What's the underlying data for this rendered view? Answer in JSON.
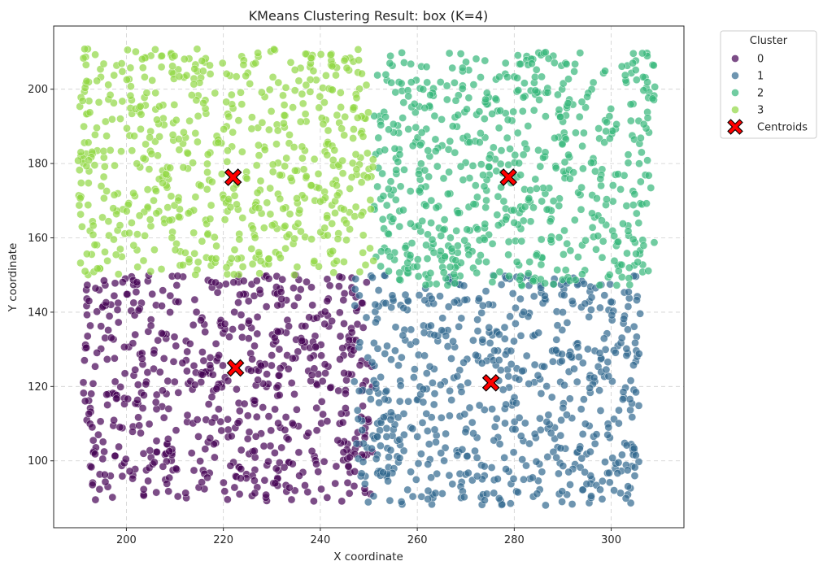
{
  "chart_data": {
    "type": "scatter",
    "title": "KMeans Clustering Result: box (K=4)",
    "xlabel": "X coordinate",
    "ylabel": "Y coordinate",
    "xlim": [
      185,
      315
    ],
    "ylim": [
      82,
      217
    ],
    "xticks": [
      200,
      220,
      240,
      260,
      280,
      300
    ],
    "yticks": [
      100,
      120,
      140,
      160,
      180,
      200
    ],
    "grid": true,
    "legend": {
      "title": "Cluster",
      "placement": "outside-upper-right",
      "entries": [
        {
          "label": "0",
          "color": "#440154",
          "marker": "circle"
        },
        {
          "label": "1",
          "color": "#31688e",
          "marker": "circle"
        },
        {
          "label": "2",
          "color": "#35b779",
          "marker": "circle"
        },
        {
          "label": "3",
          "color": "#90d743",
          "marker": "circle"
        },
        {
          "label": "Centroids",
          "color": "#ff0000",
          "marker": "X"
        }
      ]
    },
    "clusters": [
      {
        "name": "0",
        "color": "#440154",
        "x_range": [
          191,
          251
        ],
        "y_range": [
          89,
          150
        ]
      },
      {
        "name": "1",
        "color": "#31688e",
        "x_range": [
          247,
          306
        ],
        "y_range": [
          88,
          150
        ]
      },
      {
        "name": "2",
        "color": "#35b779",
        "x_range": [
          251,
          309
        ],
        "y_range": [
          147,
          210
        ]
      },
      {
        "name": "3",
        "color": "#90d743",
        "x_range": [
          190,
          251
        ],
        "y_range": [
          150,
          211
        ]
      }
    ],
    "centroids": [
      {
        "cluster": "0",
        "x": 222.5,
        "y": 125
      },
      {
        "cluster": "1",
        "x": 275.2,
        "y": 121
      },
      {
        "cluster": "2",
        "x": 278.8,
        "y": 176.3
      },
      {
        "cluster": "3",
        "x": 222,
        "y": 176.3
      }
    ],
    "point_opacity": 0.7
  }
}
